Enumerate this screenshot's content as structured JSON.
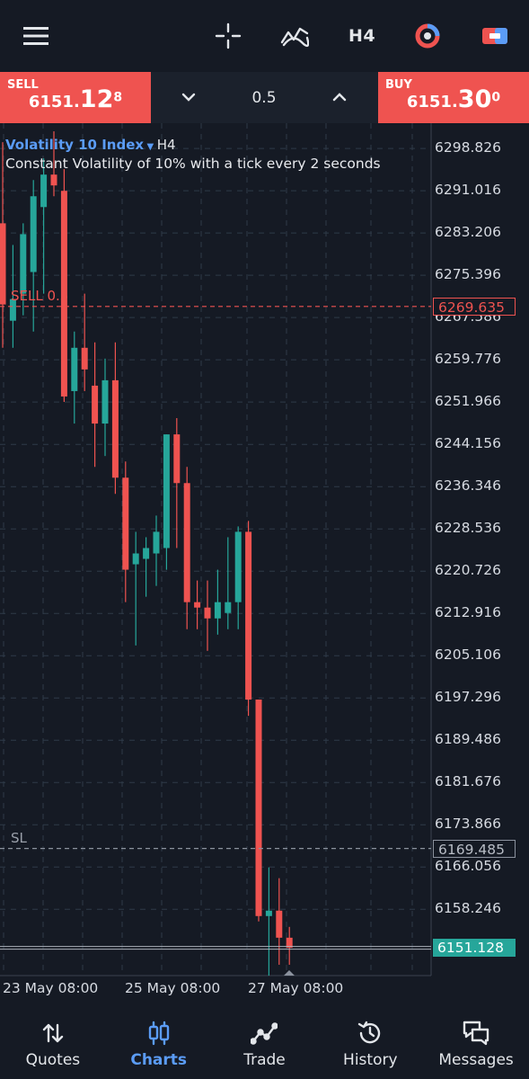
{
  "toolbar": {
    "timeframe": "H4",
    "icons": [
      "menu-icon",
      "crosshair-icon",
      "indicators-icon",
      "timeframe-label",
      "one-click-trading-icon",
      "trade-panel-icon"
    ]
  },
  "trade_panel": {
    "sell": {
      "label": "SELL",
      "price_big": "6151.",
      "price_main": "12",
      "price_small": "8"
    },
    "buy": {
      "label": "BUY",
      "price_big": "6151.",
      "price_main": "30",
      "price_small": "0"
    },
    "volume": "0.5"
  },
  "chart": {
    "symbol": "Volatility 10 Index",
    "timeframe": "H4",
    "description": "Constant Volatility of 10% with a tick every 2 seconds",
    "sell_line_label": "SELL 0.5",
    "sell_line_price": "6269.635",
    "sl_line_label": "SL",
    "sl_line_price": "6169.485",
    "current_price": "6151.128",
    "y_ticks": [
      "6298.826",
      "6291.016",
      "6283.206",
      "6275.396",
      "6267.586",
      "6259.776",
      "6251.966",
      "6244.156",
      "6236.346",
      "6228.536",
      "6220.726",
      "6212.916",
      "6205.106",
      "6197.296",
      "6189.486",
      "6181.676",
      "6173.866",
      "6166.056",
      "6158.246"
    ],
    "x_ticks": [
      "23 May 08:00",
      "25 May 08:00",
      "27 May 08:00"
    ],
    "colors": {
      "up": "#26a69a",
      "down": "#ef5350",
      "background": "#151a24",
      "accent": "#5b9cf6"
    }
  },
  "chart_data": {
    "type": "candlestick",
    "title": "Volatility 10 Index, H4",
    "ylim": [
      6146.0,
      6303.5
    ],
    "grid": true,
    "candles": [
      {
        "o": 6285.0,
        "h": 6300.0,
        "l": 6262.0,
        "c": 6270.0
      },
      {
        "o": 6267.0,
        "h": 6281.0,
        "l": 6262.0,
        "c": 6271.0
      },
      {
        "o": 6272.0,
        "h": 6285.0,
        "l": 6268.0,
        "c": 6283.0
      },
      {
        "o": 6276.0,
        "h": 6293.0,
        "l": 6265.0,
        "c": 6290.0
      },
      {
        "o": 6288.0,
        "h": 6297.0,
        "l": 6272.0,
        "c": 6294.0
      },
      {
        "o": 6294.0,
        "h": 6302.0,
        "l": 6290.0,
        "c": 6292.0
      },
      {
        "o": 6291.0,
        "h": 6295.0,
        "l": 6252.0,
        "c": 6253.0
      },
      {
        "o": 6254.0,
        "h": 6265.0,
        "l": 6248.0,
        "c": 6262.0
      },
      {
        "o": 6262.0,
        "h": 6272.0,
        "l": 6254.0,
        "c": 6258.0
      },
      {
        "o": 6255.0,
        "h": 6263.0,
        "l": 6240.0,
        "c": 6248.0
      },
      {
        "o": 6248.0,
        "h": 6260.0,
        "l": 6242.0,
        "c": 6256.0
      },
      {
        "o": 6256.0,
        "h": 6263.0,
        "l": 6235.0,
        "c": 6238.0
      },
      {
        "o": 6238.0,
        "h": 6241.0,
        "l": 6215.0,
        "c": 6221.0
      },
      {
        "o": 6222.0,
        "h": 6228.0,
        "l": 6207.0,
        "c": 6224.0
      },
      {
        "o": 6223.0,
        "h": 6227.0,
        "l": 6216.0,
        "c": 6225.0
      },
      {
        "o": 6224.0,
        "h": 6231.0,
        "l": 6218.0,
        "c": 6228.0
      },
      {
        "o": 6225.0,
        "h": 6246.0,
        "l": 6221.0,
        "c": 6246.0
      },
      {
        "o": 6246.0,
        "h": 6249.0,
        "l": 6225.0,
        "c": 6237.0
      },
      {
        "o": 6237.0,
        "h": 6240.0,
        "l": 6210.0,
        "c": 6215.0
      },
      {
        "o": 6215.0,
        "h": 6219.0,
        "l": 6210.0,
        "c": 6214.0
      },
      {
        "o": 6214.0,
        "h": 6219.0,
        "l": 6206.0,
        "c": 6212.0
      },
      {
        "o": 6212.0,
        "h": 6221.0,
        "l": 6209.0,
        "c": 6215.0
      },
      {
        "o": 6213.0,
        "h": 6227.0,
        "l": 6210.0,
        "c": 6215.0
      },
      {
        "o": 6215.0,
        "h": 6229.0,
        "l": 6210.0,
        "c": 6228.0
      },
      {
        "o": 6228.0,
        "h": 6230.0,
        "l": 6194.0,
        "c": 6197.0
      },
      {
        "o": 6197.0,
        "h": 6197.0,
        "l": 6156.0,
        "c": 6157.0
      },
      {
        "o": 6157.0,
        "h": 6166.0,
        "l": 6146.0,
        "c": 6158.0
      },
      {
        "o": 6158.0,
        "h": 6164.0,
        "l": 6148.0,
        "c": 6153.0
      },
      {
        "o": 6153.0,
        "h": 6155.0,
        "l": 6148.0,
        "c": 6151.128
      }
    ]
  },
  "nav": [
    {
      "label": "Quotes",
      "icon": "quotes-icon"
    },
    {
      "label": "Charts",
      "icon": "charts-icon",
      "active": true
    },
    {
      "label": "Trade",
      "icon": "trade-icon"
    },
    {
      "label": "History",
      "icon": "history-icon"
    },
    {
      "label": "Messages",
      "icon": "messages-icon"
    }
  ]
}
